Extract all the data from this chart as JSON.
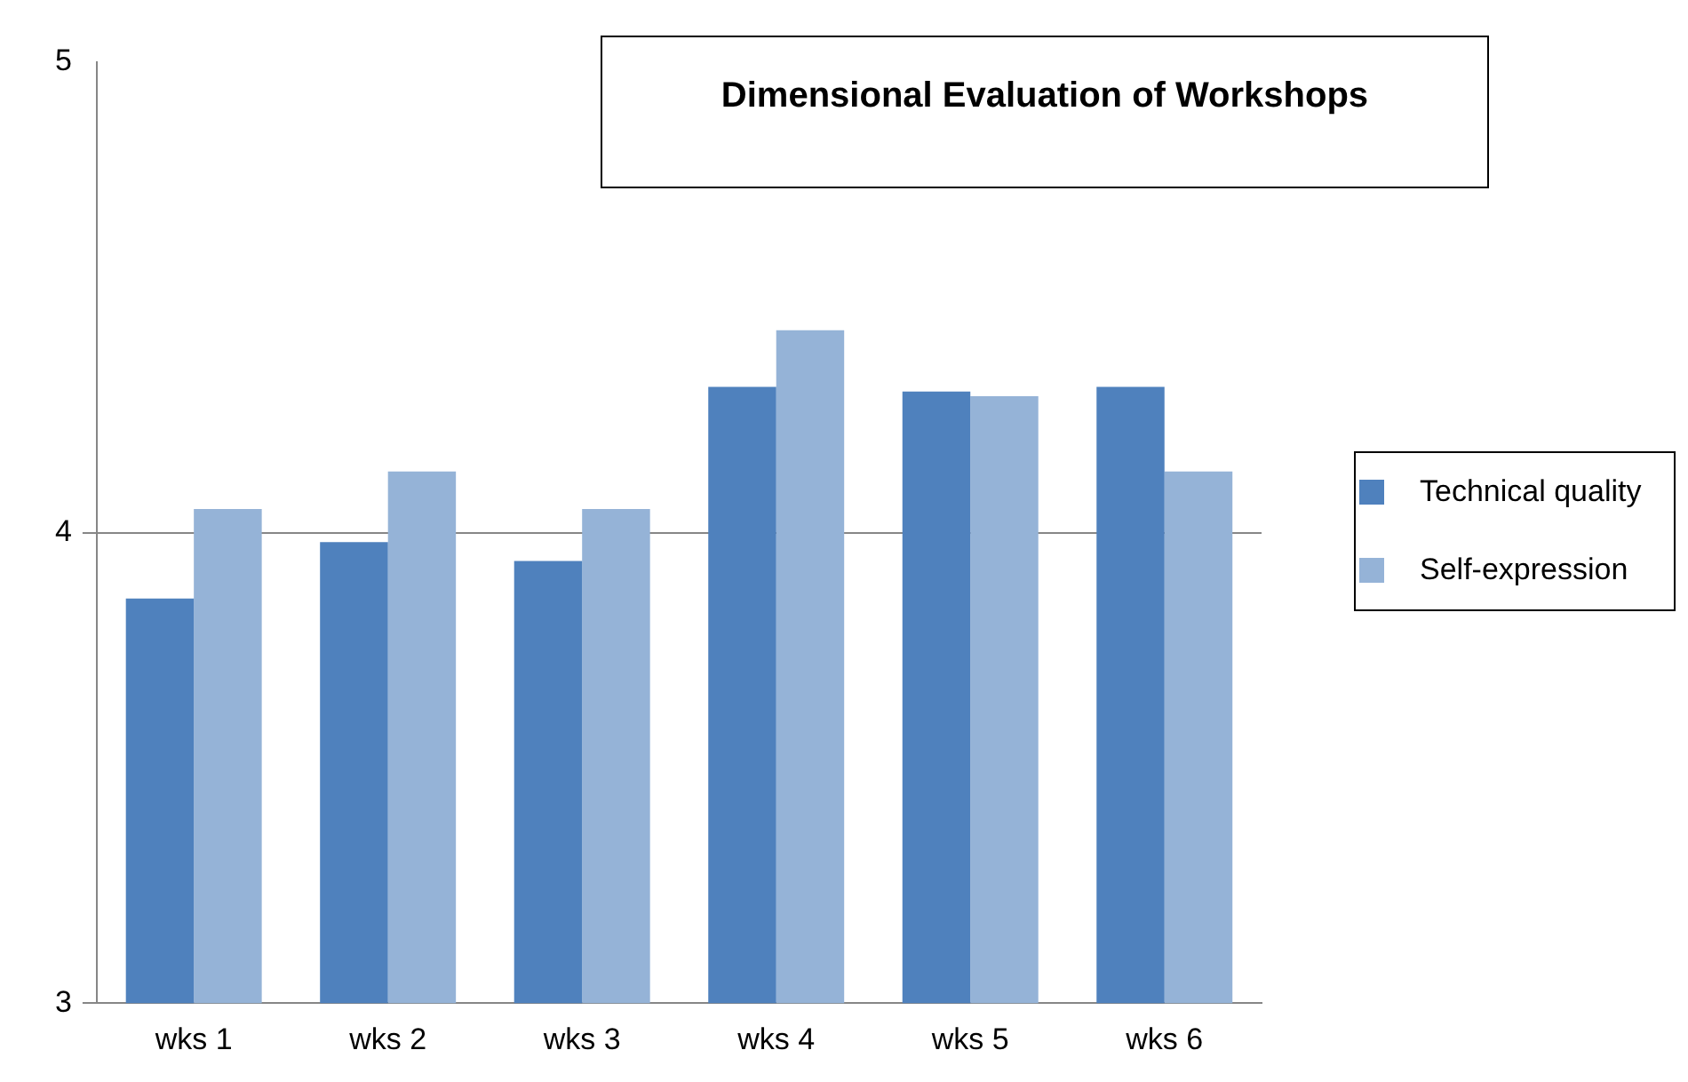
{
  "chart_data": {
    "type": "bar",
    "title": "Dimensional Evaluation of Workshops",
    "categories": [
      "wks 1",
      "wks 2",
      "wks 3",
      "wks 4",
      "wks 5",
      "wks 6"
    ],
    "series": [
      {
        "name": "Technical quality",
        "color": "#4f81bd",
        "values": [
          3.86,
          3.98,
          3.94,
          4.31,
          4.3,
          4.31
        ]
      },
      {
        "name": "Self-expression",
        "color": "#95b3d7",
        "values": [
          4.05,
          4.13,
          4.05,
          4.43,
          4.29,
          4.13
        ]
      }
    ],
    "ylim": [
      3,
      5
    ],
    "yticks": [
      3,
      4,
      5
    ],
    "grid": "y",
    "legend": "right"
  }
}
